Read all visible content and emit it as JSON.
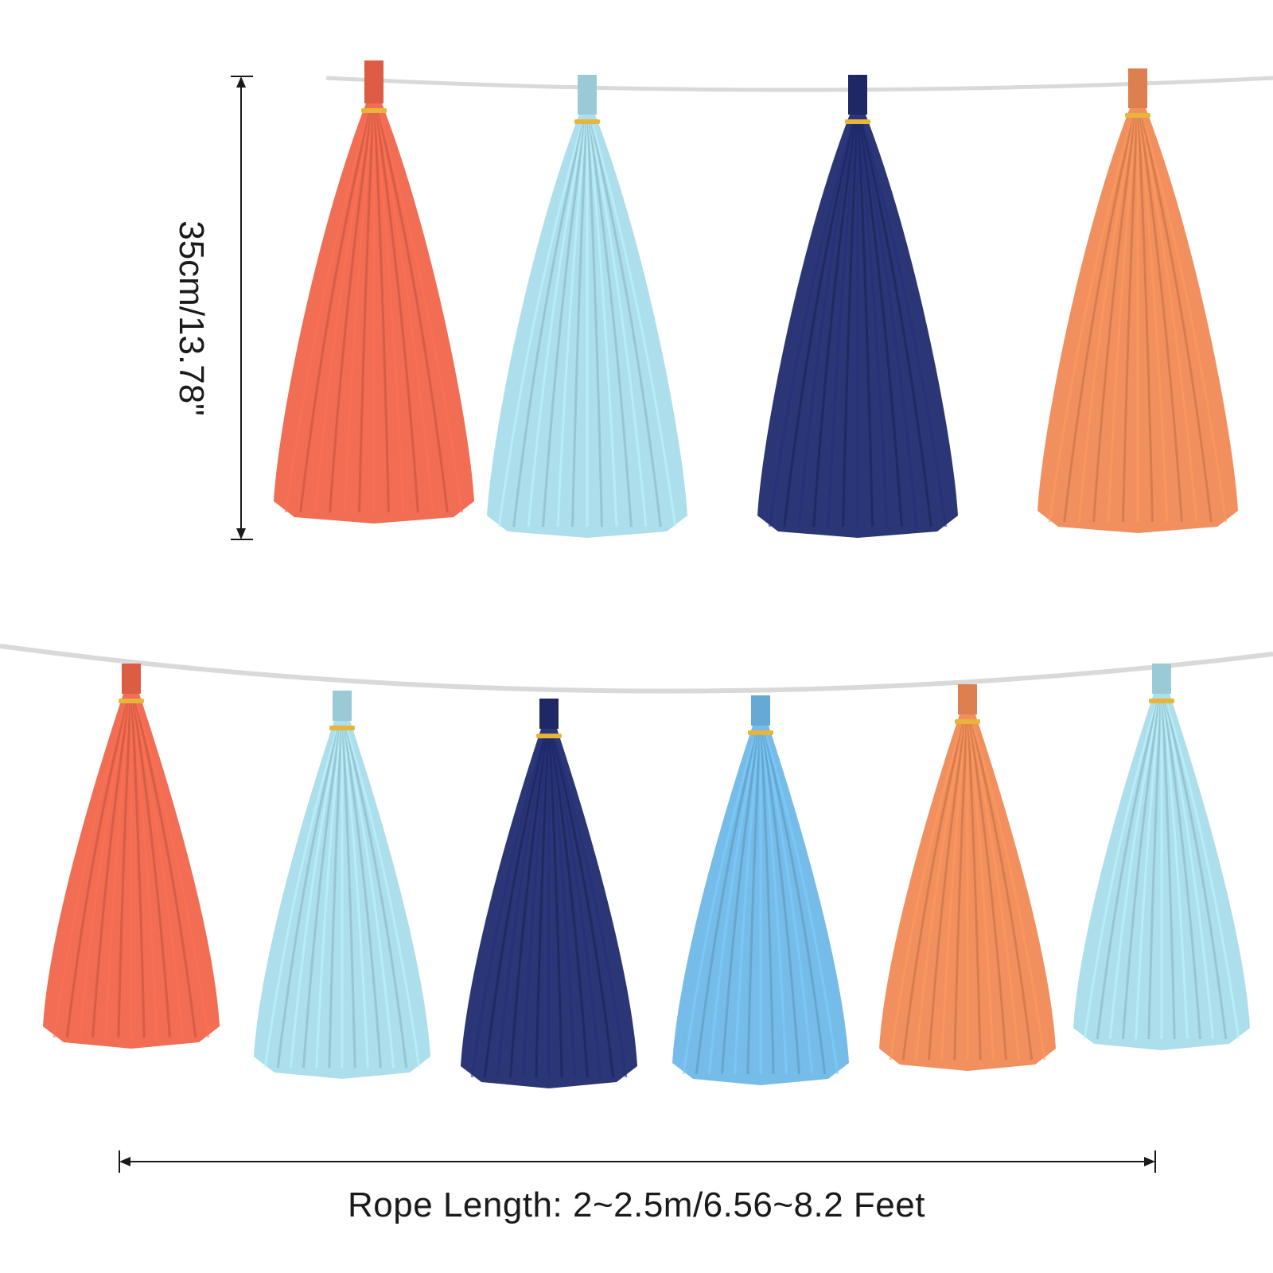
{
  "height_dimension": "35cm/13.78\"",
  "rope_dimension": "Rope Length: 2~2.5m/6.56~8.2 Feet",
  "colors": {
    "coral": "#f0654a",
    "light_blue": "#a8dcea",
    "navy": "#1f2b6e",
    "peach_orange": "#f08a55",
    "sky_blue": "#6fb8e8",
    "gold_clip": "#e8b53a",
    "rope": "#d8d8d8",
    "dimension_line": "#1a1a1a"
  },
  "top_row": [
    "coral",
    "light_blue",
    "navy",
    "peach_orange"
  ],
  "bottom_row": [
    "coral",
    "light_blue",
    "navy",
    "sky_blue",
    "peach_orange",
    "light_blue"
  ]
}
